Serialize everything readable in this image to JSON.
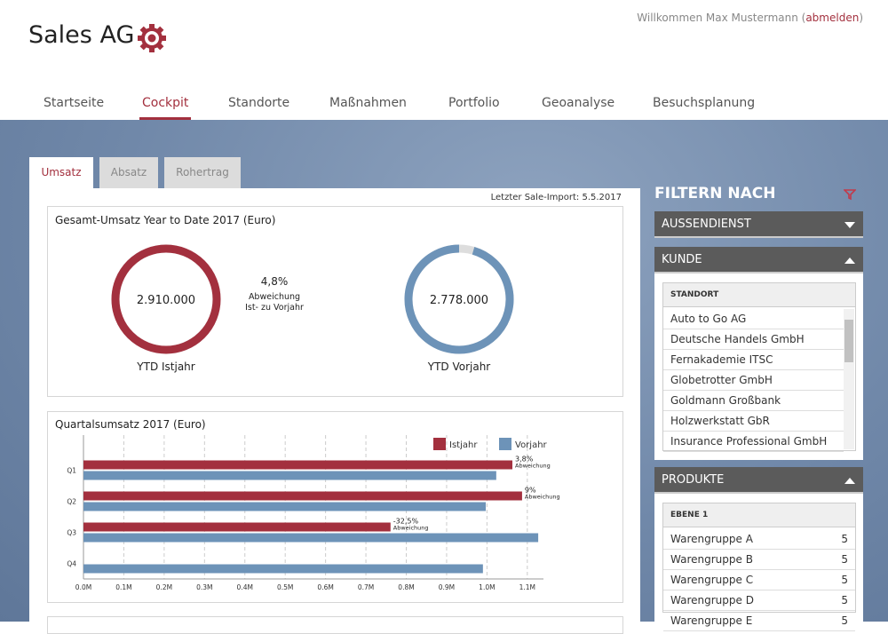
{
  "header": {
    "brand": "Sales AG",
    "welcome_prefix": "Willkommen Max Mustermann (",
    "logout": "abmelden",
    "welcome_suffix": ")"
  },
  "nav": {
    "items": [
      "Startseite",
      "Cockpit",
      "Standorte",
      "Maßnahmen",
      "Portfolio",
      "Geoanalyse",
      "Besuchsplanung"
    ],
    "active": 1
  },
  "tabs": {
    "items": [
      "Umsatz",
      "Absatz",
      "Rohertrag"
    ],
    "active": 0
  },
  "import_note": "Letzter Sale-Import: 5.5.2017",
  "donut_chart": {
    "type": "donut",
    "title": "Gesamt-Umsatz Year to Date 2017 (Euro)",
    "items": [
      {
        "caption": "YTD Istjahr",
        "value": {
          "value": 2910000,
          "label": "2.910.000"
        },
        "color": "#a3303e"
      },
      {
        "caption": "YTD Vorjahr",
        "value": {
          "value": 2778000,
          "label": "2.778.000"
        },
        "color": "#6d93b8"
      }
    ],
    "track_color": "#dddddd",
    "deviation": {
      "value": 4.8,
      "label": "4,8%"
    },
    "deviation_caption": [
      "Abweichung",
      "Ist- zu Vorjahr"
    ]
  },
  "bar_chart": {
    "type": "bar",
    "orientation": "horizontal",
    "title": "Quartalsumsatz 2017 (Euro)",
    "categories": [
      "Q1",
      "Q2",
      "Q3",
      "Q4"
    ],
    "series": [
      {
        "name": "Istjahr",
        "color": "#a3303e",
        "values": [
          1.063,
          1.087,
          0.761,
          null
        ]
      },
      {
        "name": "Vorjahr",
        "color": "#6d93b8",
        "values": [
          1.023,
          0.997,
          1.127,
          0.99
        ]
      }
    ],
    "xlim": [
      0,
      1.14
    ],
    "xticks": [
      {
        "value": 0,
        "label": "0.0M"
      },
      {
        "value": 0.1,
        "label": "0.1M"
      },
      {
        "value": 0.2,
        "label": "0.2M"
      },
      {
        "value": 0.3,
        "label": "0.3M"
      },
      {
        "value": 0.4,
        "label": "0.4M"
      },
      {
        "value": 0.5,
        "label": "0.5M"
      },
      {
        "value": 0.6,
        "label": "0.6M"
      },
      {
        "value": 0.7,
        "label": "0.7M"
      },
      {
        "value": 0.8,
        "label": "0.8M"
      },
      {
        "value": 0.9,
        "label": "0.9M"
      },
      {
        "value": 1.0,
        "label": "1.0M"
      },
      {
        "value": 1.1,
        "label": "1.1M"
      }
    ],
    "grid": true,
    "deviations": {
      "values": [
        3.8,
        9,
        -32.5,
        null
      ],
      "value_labels": [
        "3,8%",
        "9%",
        "-32,5%",
        null
      ],
      "caption": "Abweichung"
    }
  },
  "sidebar": {
    "title": "FILTERN NACH",
    "sections": [
      {
        "title": "AUSSENDIENST",
        "expanded": false
      },
      {
        "title": "KUNDE",
        "expanded": true,
        "list_header": "STANDORT",
        "items": [
          "Auto to Go AG",
          "Deutsche Handels GmbH",
          "Fernakademie ITSC",
          "Globetrotter GmbH",
          "Goldmann Großbank",
          "Holzwerkstatt GbR",
          "Insurance Professional GmbH"
        ]
      },
      {
        "title": "PRODUKTE",
        "expanded": true,
        "list_header": "EBENE 1",
        "items": [
          "Warengruppe A",
          "Warengruppe B",
          "Warengruppe C",
          "Warengruppe D",
          "Warengruppe E"
        ],
        "counts": [
          5,
          5,
          5,
          5,
          5
        ]
      }
    ]
  }
}
